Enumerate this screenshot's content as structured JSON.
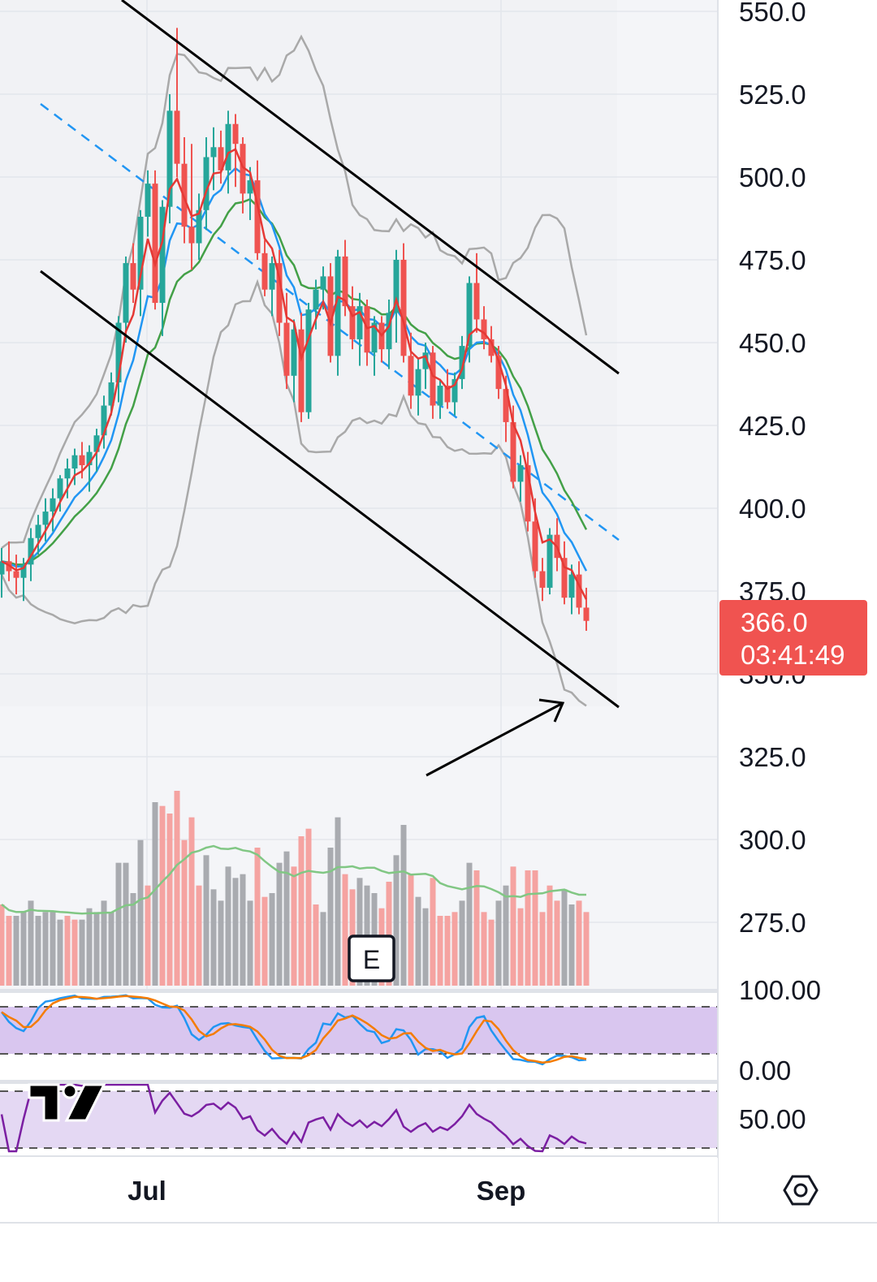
{
  "chart_data": {
    "type": "candlestick",
    "price_axis": {
      "ticks": [
        "550.0",
        "525.0",
        "500.0",
        "475.0",
        "450.0",
        "425.0",
        "400.0",
        "375.0",
        "350.0",
        "325.0",
        "300.0",
        "275.0"
      ],
      "range": [
        265,
        552
      ]
    },
    "time_axis": {
      "labels": [
        "Jul",
        "Sep"
      ]
    },
    "last_price": {
      "value": "366.0",
      "countdown": "03:41:49"
    },
    "candles_ohlc": [
      [
        380,
        388,
        373,
        384
      ],
      [
        384,
        390,
        378,
        381
      ],
      [
        381,
        386,
        374,
        379
      ],
      [
        379,
        385,
        372,
        383
      ],
      [
        383,
        394,
        378,
        391
      ],
      [
        391,
        398,
        386,
        395
      ],
      [
        395,
        403,
        390,
        399
      ],
      [
        399,
        406,
        393,
        403
      ],
      [
        403,
        410,
        399,
        409
      ],
      [
        409,
        415,
        403,
        412
      ],
      [
        412,
        418,
        407,
        416
      ],
      [
        416,
        420,
        409,
        413
      ],
      [
        413,
        419,
        405,
        417
      ],
      [
        417,
        424,
        411,
        422
      ],
      [
        422,
        434,
        418,
        431
      ],
      [
        431,
        441,
        428,
        438
      ],
      [
        438,
        458,
        432,
        456
      ],
      [
        456,
        476,
        450,
        474
      ],
      [
        474,
        480,
        462,
        466
      ],
      [
        466,
        490,
        458,
        488
      ],
      [
        488,
        502,
        482,
        498
      ],
      [
        498,
        502,
        460,
        462
      ],
      [
        462,
        493,
        452,
        491
      ],
      [
        491,
        525,
        486,
        520
      ],
      [
        520,
        545,
        500,
        504
      ],
      [
        504,
        512,
        480,
        485
      ],
      [
        485,
        510,
        472,
        480
      ],
      [
        480,
        495,
        475,
        490
      ],
      [
        490,
        512,
        484,
        506
      ],
      [
        506,
        515,
        496,
        509
      ],
      [
        509,
        514,
        498,
        502
      ],
      [
        502,
        520,
        495,
        516
      ],
      [
        516,
        519,
        497,
        510
      ],
      [
        510,
        512,
        489,
        495
      ],
      [
        495,
        503,
        487,
        499
      ],
      [
        499,
        505,
        475,
        477
      ],
      [
        477,
        481,
        464,
        466
      ],
      [
        466,
        476,
        458,
        474
      ],
      [
        474,
        478,
        452,
        456
      ],
      [
        456,
        465,
        436,
        440
      ],
      [
        440,
        457,
        432,
        454
      ],
      [
        454,
        459,
        426,
        429
      ],
      [
        429,
        462,
        427,
        460
      ],
      [
        460,
        469,
        454,
        466
      ],
      [
        466,
        473,
        460,
        470
      ],
      [
        470,
        474,
        444,
        446
      ],
      [
        446,
        478,
        440,
        476
      ],
      [
        476,
        481,
        458,
        461
      ],
      [
        461,
        467,
        448,
        451
      ],
      [
        451,
        465,
        443,
        461
      ],
      [
        461,
        463,
        443,
        447
      ],
      [
        447,
        458,
        440,
        456
      ],
      [
        456,
        458,
        444,
        448
      ],
      [
        448,
        463,
        442,
        459
      ],
      [
        459,
        478,
        450,
        475
      ],
      [
        475,
        480,
        444,
        446
      ],
      [
        446,
        453,
        430,
        434
      ],
      [
        434,
        445,
        428,
        442
      ],
      [
        442,
        450,
        436,
        447
      ],
      [
        447,
        449,
        427,
        431
      ],
      [
        431,
        439,
        427,
        437
      ],
      [
        437,
        442,
        430,
        432
      ],
      [
        432,
        441,
        428,
        439
      ],
      [
        439,
        452,
        436,
        449
      ],
      [
        449,
        470,
        444,
        468
      ],
      [
        468,
        477,
        453,
        457
      ],
      [
        457,
        461,
        448,
        451
      ],
      [
        451,
        455,
        444,
        446
      ],
      [
        446,
        449,
        433,
        436
      ],
      [
        436,
        440,
        420,
        426
      ],
      [
        426,
        431,
        406,
        408
      ],
      [
        408,
        416,
        402,
        413
      ],
      [
        413,
        417,
        393,
        396
      ],
      [
        396,
        403,
        379,
        381
      ],
      [
        381,
        385,
        372,
        376
      ],
      [
        376,
        394,
        374,
        392
      ],
      [
        392,
        397,
        381,
        385
      ],
      [
        385,
        390,
        371,
        373
      ],
      [
        373,
        383,
        368,
        380
      ],
      [
        380,
        384,
        368,
        370
      ],
      [
        370,
        376,
        363,
        366
      ]
    ],
    "volume_bars": {
      "colors": [
        "r",
        "r",
        "g",
        "g",
        "g",
        "g",
        "g",
        "g",
        "g",
        "r",
        "r",
        "g",
        "g",
        "g",
        "g",
        "g",
        "g",
        "g",
        "g",
        "g",
        "r",
        "g",
        "r",
        "r",
        "r",
        "r",
        "r",
        "r",
        "g",
        "g",
        "g",
        "g",
        "g",
        "g",
        "g",
        "r",
        "r",
        "g",
        "g",
        "g",
        "r",
        "r",
        "r",
        "r",
        "g",
        "g",
        "g",
        "r",
        "r",
        "g",
        "g",
        "g",
        "r",
        "r",
        "g",
        "g",
        "r",
        "g",
        "g",
        "r",
        "r",
        "r",
        "r",
        "g",
        "g",
        "r",
        "r",
        "r",
        "g",
        "g",
        "r",
        "r",
        "r",
        "r",
        "r",
        "r",
        "r",
        "g",
        "g",
        "r",
        "r"
      ]
    },
    "overlays": [
      "EMA (red)",
      "EMA (blue)",
      "EMA (green)",
      "Bollinger Bands (gray)",
      "Regression line (dashed blue)",
      "Descending channel (black)"
    ],
    "lower_panes": [
      {
        "name": "Stochastic",
        "levels": [
          "100.00",
          "0.00"
        ],
        "shading": "#d9c6ef"
      },
      {
        "name": "RSI",
        "levels": [
          "50.00"
        ],
        "shading": "#e2d6f2"
      }
    ],
    "grid": true,
    "colors": {
      "up": "#26a69a",
      "down": "#ef5350",
      "ema_fast": "#e53935",
      "ema_mid": "#2196f3",
      "ema_slow": "#43a047",
      "bands": "#a6a6a6",
      "channel": "#000000",
      "stoch_k": "#2196f3",
      "stoch_d": "#f57c00",
      "rsi": "#7b1fa2",
      "price_tag": "#f05350"
    }
  },
  "earnings_marker": "E",
  "logo_text": "TV"
}
